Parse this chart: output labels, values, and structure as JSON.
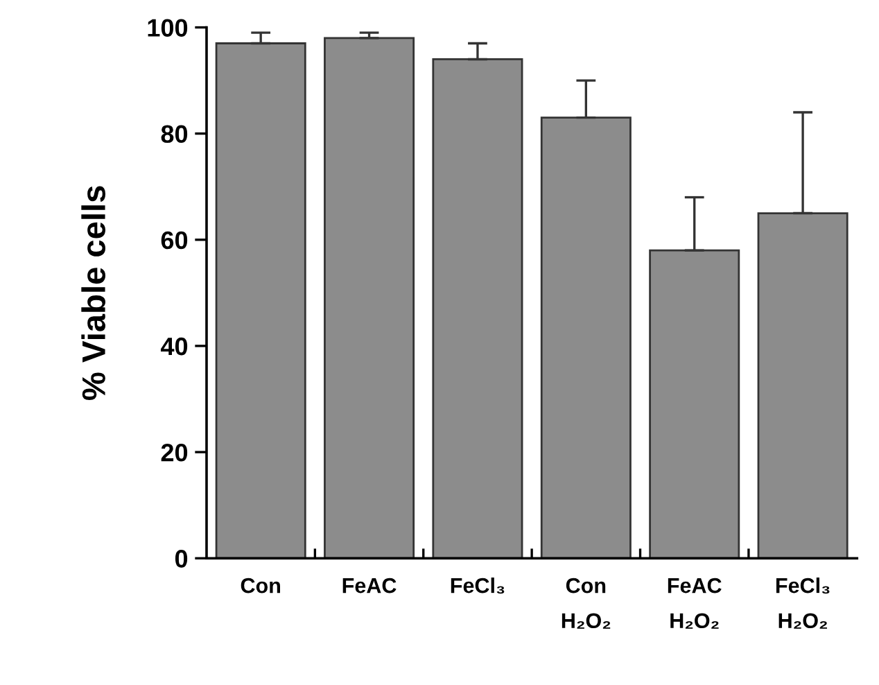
{
  "chart_data": {
    "type": "bar",
    "ylabel": "% Viable cells",
    "categories": [
      "Con",
      "FeAC",
      "FeCl₃",
      "Con\nH₂O₂",
      "FeAC\nH₂O₂",
      "FeCl₃\nH₂O₂"
    ],
    "values": [
      97,
      98,
      94,
      83,
      58,
      65
    ],
    "errors": [
      [
        97,
        99
      ],
      [
        98,
        99
      ],
      [
        94,
        97
      ],
      [
        83,
        90
      ],
      [
        58,
        68
      ],
      [
        65,
        84
      ]
    ],
    "color": "#8c8c8c",
    "ylim": [
      0,
      100
    ],
    "yticks": [
      0,
      20,
      40,
      60,
      80,
      100
    ],
    "grid": false
  }
}
